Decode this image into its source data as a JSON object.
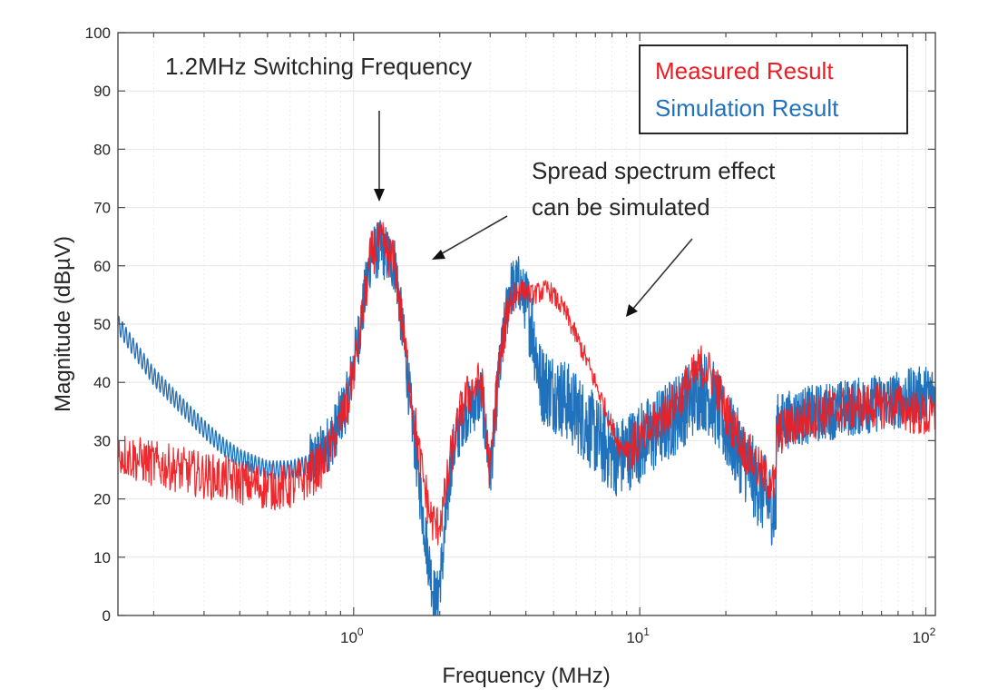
{
  "chart_data": {
    "type": "line",
    "title": "",
    "xlabel": "Frequency (MHz)",
    "ylabel": "Magnitude (dBµV)",
    "xscale": "log",
    "xlim": [
      0.15,
      108
    ],
    "ylim": [
      0,
      100
    ],
    "grid": true,
    "yticks": [
      0,
      10,
      20,
      30,
      40,
      50,
      60,
      70,
      80,
      90,
      100
    ],
    "xticks": [
      {
        "value": 1,
        "base": "10",
        "exp": "0"
      },
      {
        "value": 10,
        "base": "10",
        "exp": "1"
      },
      {
        "value": 100,
        "base": "10",
        "exp": "2"
      }
    ],
    "legend": {
      "placement": "top-right",
      "entries": [
        {
          "label": "Measured Result",
          "color": "#ee1d23"
        },
        {
          "label": "Simulation Result",
          "color": "#1f72bb"
        }
      ]
    },
    "annotations": [
      {
        "text": "1.2MHz Switching Frequency",
        "arrow_to": {
          "x": 1.1,
          "y": 71
        }
      },
      {
        "text_lines": [
          "Spread spectrum effect",
          "can be simulated"
        ],
        "arrows_to": [
          {
            "x": 1.85,
            "y": 61
          },
          {
            "x": 8.9,
            "y": 51
          }
        ]
      }
    ],
    "series": [
      {
        "name": "Measured Result",
        "color": "#ee1d23",
        "noise_db": 4,
        "x": [
          0.15,
          0.17,
          0.2,
          0.25,
          0.3,
          0.4,
          0.5,
          0.6,
          0.7,
          0.78,
          0.85,
          0.95,
          1.05,
          1.15,
          1.25,
          1.4,
          1.55,
          1.7,
          1.85,
          1.95,
          2.05,
          2.2,
          2.4,
          2.6,
          2.8,
          3.0,
          3.2,
          3.5,
          3.8,
          4.2,
          4.8,
          5.5,
          6.5,
          7.5,
          8.5,
          9.5,
          11,
          13,
          15,
          16.5,
          18,
          20,
          23,
          26,
          30,
          30.01,
          35,
          45,
          60,
          80,
          100,
          108
        ],
        "y": [
          28,
          27,
          26,
          25,
          24,
          23,
          22,
          22,
          24,
          26,
          30,
          36,
          48,
          62,
          64,
          60,
          42,
          27,
          17,
          15,
          18,
          28,
          36,
          39,
          40,
          24,
          42,
          54,
          56,
          55,
          56,
          52,
          44,
          36,
          29,
          29,
          32,
          36,
          40,
          43,
          41,
          35,
          29,
          25,
          22,
          31,
          33,
          35,
          36,
          36,
          34,
          34
        ]
      },
      {
        "name": "Simulation Result",
        "color": "#1f72bb",
        "noise_db": 5,
        "x": [
          0.15,
          0.17,
          0.2,
          0.25,
          0.3,
          0.35,
          0.4,
          0.5,
          0.6,
          0.7,
          0.78,
          0.85,
          0.95,
          1.05,
          1.15,
          1.25,
          1.4,
          1.55,
          1.7,
          1.8,
          1.9,
          1.95,
          2.05,
          2.2,
          2.4,
          2.6,
          2.8,
          3.0,
          3.2,
          3.5,
          3.8,
          4.2,
          4.5,
          5.5,
          6.5,
          7.5,
          8.5,
          9.5,
          11,
          13,
          15,
          16.5,
          18,
          20,
          23,
          26,
          30,
          30.01,
          35,
          45,
          60,
          80,
          100,
          108
        ],
        "y": [
          50,
          46,
          41,
          36,
          32,
          29,
          27,
          25,
          25,
          26,
          28,
          31,
          37,
          49,
          62,
          63,
          60,
          40,
          22,
          12,
          4,
          2,
          10,
          27,
          34,
          36,
          38,
          24,
          40,
          56,
          57,
          50,
          40,
          37,
          33,
          29,
          27,
          29,
          31,
          34,
          37,
          39,
          37,
          32,
          27,
          22,
          18,
          33,
          34,
          35,
          36,
          37,
          38,
          38
        ]
      }
    ]
  },
  "labels": {
    "xlabel": "Frequency (MHz)",
    "ylabel": "Magnitude (dBµV)",
    "annotation_switching": "1.2MHz Switching Frequency",
    "annotation_spread_line1": "Spread spectrum effect",
    "annotation_spread_line2": "can be simulated",
    "legend_measured": "Measured Result",
    "legend_simulation": "Simulation Result"
  }
}
